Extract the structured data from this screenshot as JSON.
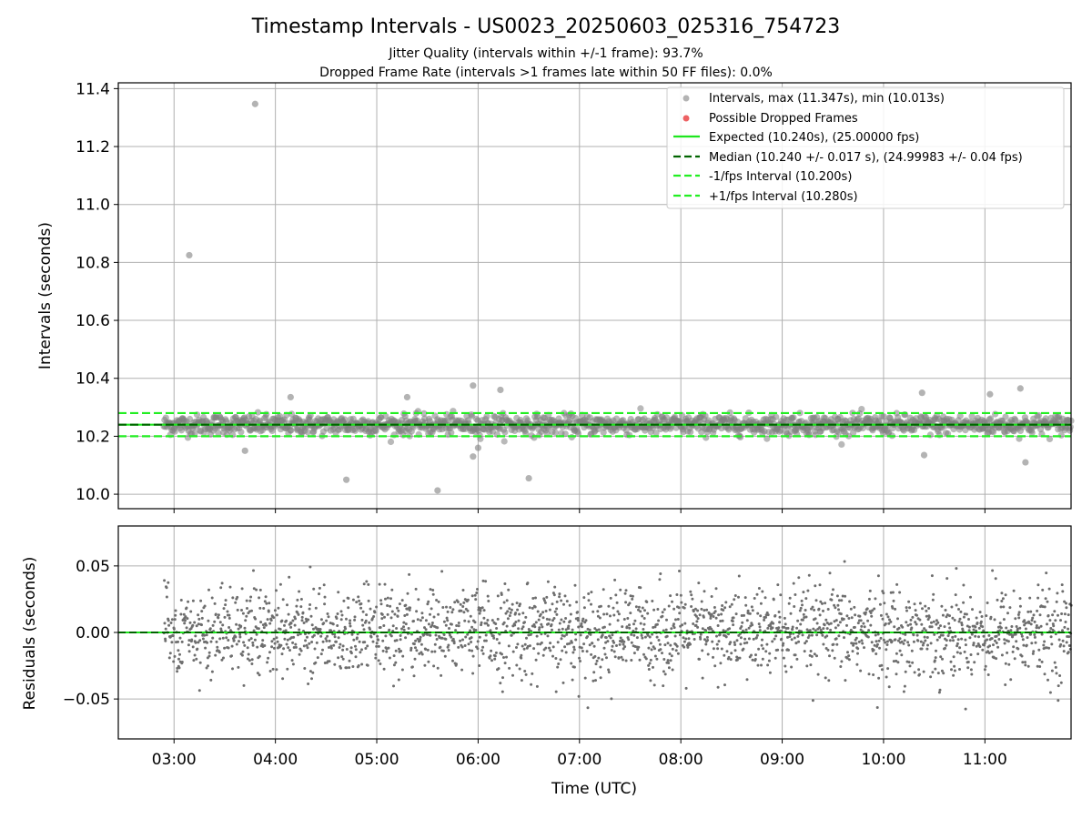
{
  "title": "Timestamp Intervals - US0023_20250603_025316_754723",
  "subtitle_1": "Jitter Quality (intervals within +/-1 frame): 93.7%",
  "subtitle_2": "Dropped Frame Rate (intervals >1 frames late within 50 FF files): 0.0%",
  "colors": {
    "points": "#808080",
    "dropped": "#e8393c",
    "expected": "#1ee61e",
    "median": "#006400",
    "interval": "#22ee22",
    "residual_points": "#6e6e6e",
    "grid": "#b0b0b0"
  },
  "chart_data": [
    {
      "type": "scatter",
      "ylabel": "Intervals (seconds)",
      "ylim": [
        9.95,
        11.42
      ],
      "yticks": [
        "10.0",
        "10.2",
        "10.4",
        "10.6",
        "10.8",
        "11.0",
        "11.2",
        "11.4"
      ],
      "ytick_values": [
        10.0,
        10.2,
        10.4,
        10.6,
        10.8,
        11.0,
        11.2,
        11.4
      ],
      "xlim_hours": [
        2.45,
        11.85
      ],
      "grid": true,
      "legend_position": "top-right",
      "legend": [
        "Intervals, max (11.347s), min (10.013s)",
        "Possible Dropped Frames",
        "Expected (10.240s), (25.00000 fps)",
        "Median (10.240 +/- 0.017 s), (24.99983 +/- 0.04 fps)",
        "-1/fps Interval (10.200s)",
        "+1/fps Interval (10.280s)"
      ],
      "series": [
        {
          "name": "Intervals",
          "max": 11.347,
          "min": 10.013,
          "center": 10.24,
          "spread": 0.017,
          "x_start": 2.9,
          "x_end": 11.85
        },
        {
          "name": "Possible Dropped Frames",
          "count": 0
        }
      ],
      "reference_lines": {
        "expected": 10.24,
        "median": 10.24,
        "minus_1_fps": 10.2,
        "plus_1_fps": 10.28
      },
      "outliers": [
        {
          "x": 3.8,
          "y": 11.347
        },
        {
          "x": 3.15,
          "y": 10.825
        },
        {
          "x": 4.7,
          "y": 10.05
        },
        {
          "x": 5.6,
          "y": 10.013
        },
        {
          "x": 6.5,
          "y": 10.055
        },
        {
          "x": 5.95,
          "y": 10.375
        },
        {
          "x": 6.22,
          "y": 10.36
        },
        {
          "x": 11.35,
          "y": 10.365
        },
        {
          "x": 11.4,
          "y": 10.11
        },
        {
          "x": 10.4,
          "y": 10.135
        },
        {
          "x": 11.05,
          "y": 10.345
        },
        {
          "x": 10.38,
          "y": 10.35
        },
        {
          "x": 5.3,
          "y": 10.335
        },
        {
          "x": 4.15,
          "y": 10.335
        },
        {
          "x": 3.7,
          "y": 10.15
        },
        {
          "x": 5.95,
          "y": 10.13
        },
        {
          "x": 6.0,
          "y": 10.16
        }
      ]
    },
    {
      "type": "scatter",
      "ylabel": "Residuals (seconds)",
      "xlabel": "Time (UTC)",
      "ylim": [
        -0.08,
        0.08
      ],
      "yticks": [
        "0.05",
        "0.00",
        "−0.05"
      ],
      "ytick_values": [
        0.05,
        0.0,
        -0.05
      ],
      "xticks": [
        "03:00",
        "04:00",
        "05:00",
        "06:00",
        "07:00",
        "08:00",
        "09:00",
        "10:00",
        "11:00"
      ],
      "xtick_values": [
        3,
        4,
        5,
        6,
        7,
        8,
        9,
        10,
        11
      ],
      "xlim_hours": [
        2.45,
        11.85
      ],
      "grid": true,
      "reference_lines": {
        "zero": 0.0
      },
      "series": [
        {
          "name": "Residuals",
          "center": 0.0,
          "spread": 0.017,
          "x_start": 2.9,
          "x_end": 11.85
        }
      ]
    }
  ]
}
